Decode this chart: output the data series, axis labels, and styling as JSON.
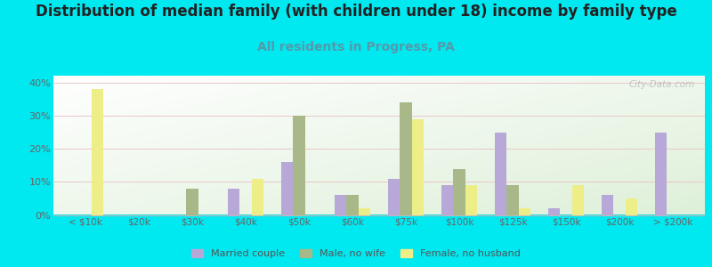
{
  "title": "Distribution of median family (with children under 18) income by family type",
  "subtitle": "All residents in Progress, PA",
  "categories": [
    "< $10k",
    "$20k",
    "$30k",
    "$40k",
    "$50k",
    "$60k",
    "$75k",
    "$100k",
    "$125k",
    "$150k",
    "$200k",
    "> $200k"
  ],
  "series": {
    "Married couple": [
      0,
      0,
      0,
      8,
      16,
      6,
      11,
      9,
      25,
      2,
      6,
      25
    ],
    "Male, no wife": [
      0,
      0,
      8,
      0,
      30,
      6,
      34,
      14,
      9,
      0,
      0,
      0
    ],
    "Female, no husband": [
      38,
      0,
      0,
      11,
      0,
      2,
      29,
      9,
      2,
      9,
      5,
      0
    ]
  },
  "colors": {
    "Married couple": "#b8a8d8",
    "Male, no wife": "#a8b888",
    "Female, no husband": "#eeee88"
  },
  "ylim": [
    0,
    42
  ],
  "yticks": [
    0,
    10,
    20,
    30,
    40
  ],
  "ytick_labels": [
    "0%",
    "10%",
    "20%",
    "30%",
    "40%"
  ],
  "background_outer": "#00e8f0",
  "grid_color": "#e8c8c8",
  "title_fontsize": 12,
  "subtitle_fontsize": 10,
  "subtitle_color": "#5599aa",
  "watermark": "City-Data.com"
}
